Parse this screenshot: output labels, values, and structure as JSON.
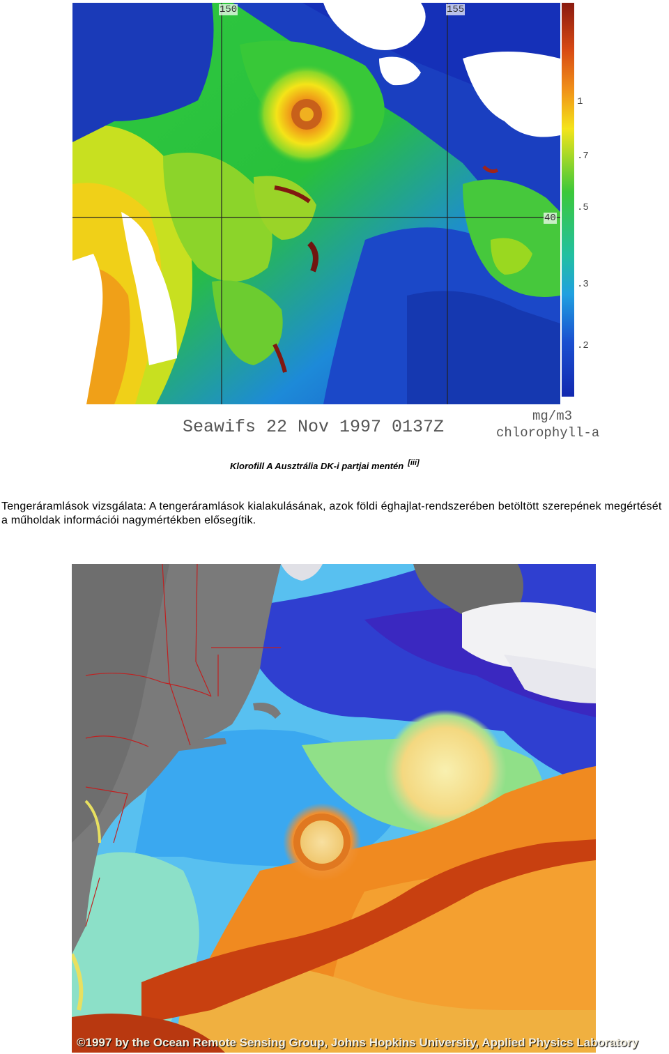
{
  "figure1": {
    "grid_labels": {
      "top_left": "150",
      "top_right": "155",
      "right": "40"
    },
    "scale_ticks": [
      "1",
      ".7",
      ".5",
      ".3",
      ".2"
    ],
    "stamp": "Seawifs 22 Nov 1997 0137Z",
    "units_line1": "mg/m3",
    "units_line2": "chlorophyll-a",
    "colors": {
      "white": "#ffffff",
      "blue": "#1a3fc0",
      "green": "#22c23a",
      "yellow": "#f2e21a",
      "orange": "#ef7d12",
      "red": "#8a1a10"
    }
  },
  "caption1": {
    "text": "Klorofill A  Ausztrália  DK-i  partjai  mentén",
    "ref": "[iii]"
  },
  "paragraph": "Tengeráramlások vizsgálata: A tengeráramlások kialakulásának, azok földi éghajlat-rendszerében betöltött szerepének megértését a műholdak információi nagymértékben elősegítik.",
  "figure2": {
    "credit": "©1997 by the Ocean Remote Sensing Group, Johns Hopkins University, Applied Physics Laboratory",
    "colors": {
      "land": "#7a7a7a",
      "deep_blue": "#2f3fd0",
      "cyan": "#4fc8f0",
      "green": "#9fe080",
      "orange": "#f08a20",
      "red": "#c84010"
    }
  }
}
